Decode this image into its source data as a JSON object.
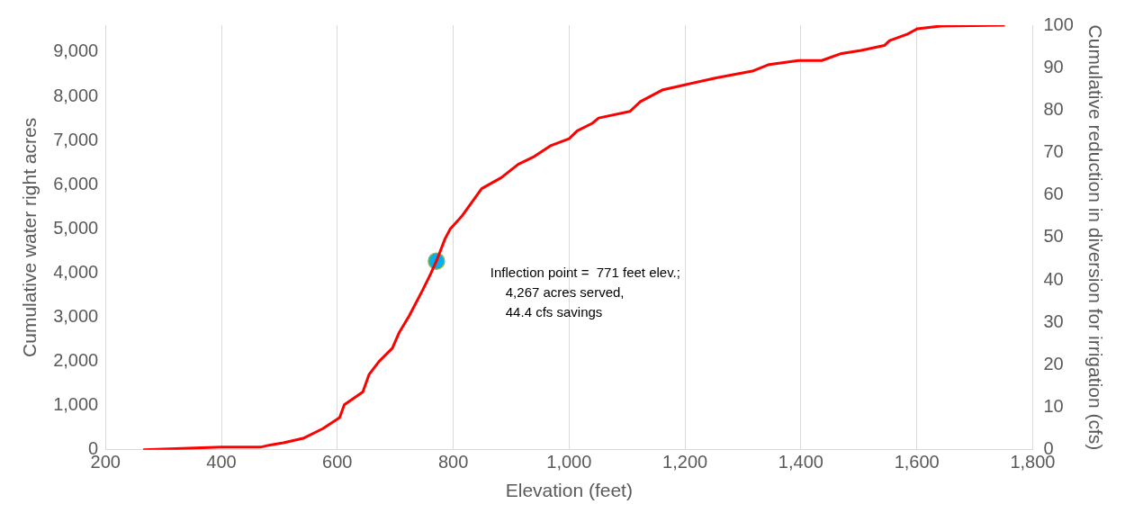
{
  "chart_data": {
    "type": "line",
    "xlabel": "Elevation (feet)",
    "ylabel": "Cumulative water right acres",
    "y2label": "Cumulative reduction in diversion for irrigation (cfs)",
    "xlim": [
      200,
      1800
    ],
    "xticks": [
      200,
      400,
      600,
      800,
      {
        "value": 1000,
        "label": "1,000"
      },
      {
        "value": 1200,
        "label": "1,200"
      },
      {
        "value": 1400,
        "label": "1,400"
      },
      {
        "value": 1600,
        "label": "1,600"
      },
      {
        "value": 1800,
        "label": "1,800"
      }
    ],
    "ylim": [
      0,
      9610
    ],
    "yticks": [
      0,
      {
        "value": 1000,
        "label": "1,000"
      },
      {
        "value": 2000,
        "label": "2,000"
      },
      {
        "value": 3000,
        "label": "3,000"
      },
      {
        "value": 4000,
        "label": "4,000"
      },
      {
        "value": 5000,
        "label": "5,000"
      },
      {
        "value": 6000,
        "label": "6,000"
      },
      {
        "value": 7000,
        "label": "7,000"
      },
      {
        "value": 8000,
        "label": "8,000"
      },
      {
        "value": 9000,
        "label": "9,000"
      }
    ],
    "y2lim": [
      0,
      100
    ],
    "y2ticks": [
      0,
      10,
      20,
      30,
      40,
      50,
      60,
      70,
      80,
      90,
      100
    ],
    "grid": "x",
    "legend": false,
    "series": [
      {
        "color": "#ff0000",
        "marker": "none",
        "line_style": "solid",
        "x": [
          265,
          399,
          467,
          484,
          507,
          541,
          575,
          604,
          612,
          644,
          655,
          672,
          695,
          707,
          724,
          747,
          761,
          771,
          786,
          795,
          815,
          849,
          883,
          912,
          940,
          969,
          1000,
          1014,
          1040,
          1051,
          1105,
          1123,
          1162,
          1200,
          1254,
          1316,
          1345,
          1396,
          1436,
          1470,
          1504,
          1544,
          1553,
          1584,
          1601,
          1641,
          1752
        ],
        "values": [
          0,
          60,
          60,
          110,
          160,
          260,
          480,
          730,
          1020,
          1310,
          1710,
          2000,
          2300,
          2660,
          3030,
          3610,
          3980,
          4270,
          4780,
          5000,
          5290,
          5910,
          6160,
          6460,
          6640,
          6890,
          7040,
          7220,
          7390,
          7510,
          7660,
          7880,
          8150,
          8260,
          8420,
          8570,
          8720,
          8810,
          8810,
          8970,
          9040,
          9150,
          9260,
          9410,
          9530,
          9590,
          9610
        ]
      },
      {
        "type": "scatter",
        "color": "#00b0f0",
        "marker": "circle",
        "x": [
          771
        ],
        "values": [
          4270
        ]
      }
    ],
    "annotations": [
      "Inflection point =  771 feet elev.;\n4,267 acres served,\n44.4 cfs savings"
    ]
  }
}
